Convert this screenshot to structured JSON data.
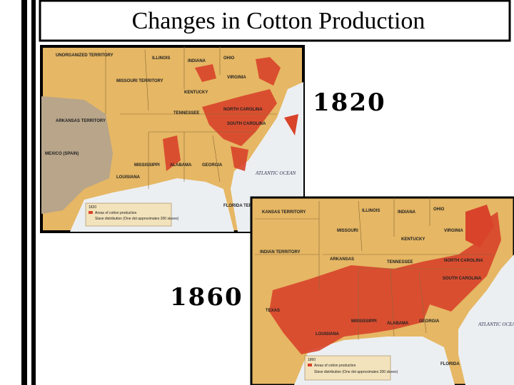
{
  "title": "Changes in Cotton Production",
  "years": [
    "1820",
    "1860"
  ],
  "maps": [
    {
      "labels": [
        "UNORGANIZED TERRITORY",
        "ILLINOIS",
        "INDIANA",
        "OHIO",
        "MISSOURI TERRITORY",
        "VIRGINIA",
        "KENTUCKY",
        "TENNESSEE",
        "NORTH CAROLINA",
        "SOUTH CAROLINA",
        "ARKANSAS TERRITORY",
        "MISSISSIPPI",
        "ALABAMA",
        "GEORGIA",
        "LOUISIANA",
        "MEXICO (SPAIN)",
        "ATLANTIC OCEAN",
        "FLORIDA TERRITORY"
      ],
      "legend": {
        "year": "1820",
        "items": [
          "Areas of cotton production",
          "Slave distribution (One dot approximates 200 slaves)"
        ]
      }
    },
    {
      "labels": [
        "KANSAS TERRITORY",
        "ILLINOIS",
        "INDIANA",
        "OHIO",
        "MISSOURI",
        "KENTUCKY",
        "VIRGINIA",
        "INDIAN TERRITORY",
        "ARKANSAS",
        "TENNESSEE",
        "NORTH CAROLINA",
        "SOUTH CAROLINA",
        "TEXAS",
        "MISSISSIPPI",
        "ALABAMA",
        "GEORGIA",
        "LOUISIANA",
        "ATLANTIC OCEAN",
        "FLORIDA"
      ],
      "legend": {
        "year": "1860",
        "items": [
          "Areas of cotton production",
          "Slave distribution (One dot approximates 200 slaves)"
        ]
      }
    }
  ]
}
